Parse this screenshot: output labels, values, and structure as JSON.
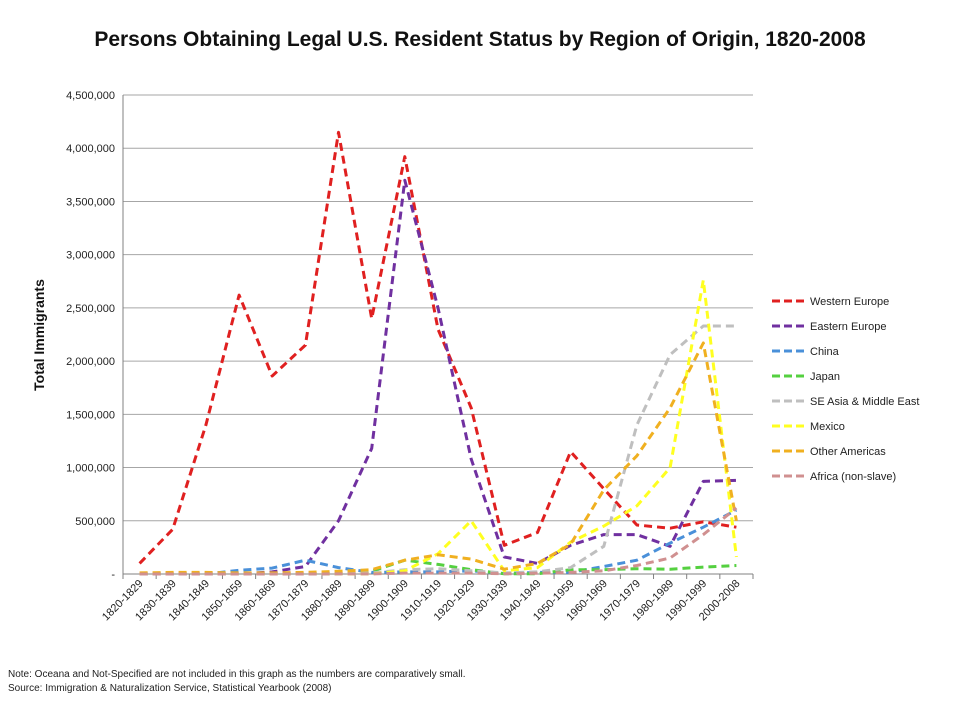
{
  "chart_data": {
    "type": "line",
    "title": "Persons Obtaining Legal U.S. Resident Status by Region of Origin, 1820-2008",
    "ylabel": "Total Immigrants",
    "xlabel": "",
    "ylim": [
      0,
      4500000
    ],
    "yticks": [
      0,
      500000,
      1000000,
      1500000,
      2000000,
      2500000,
      3000000,
      3500000,
      4000000,
      4500000
    ],
    "ytick_labels": [
      "-",
      "500,000",
      "1,000,000",
      "1,500,000",
      "2,000,000",
      "2,500,000",
      "3,000,000",
      "3,500,000",
      "4,000,000",
      "4,500,000"
    ],
    "grid": "horizontal",
    "legend_position": "right",
    "line_style": "dashed",
    "categories": [
      "1820-1829",
      "1830-1839",
      "1840-1849",
      "1850-1859",
      "1860-1869",
      "1870-1879",
      "1880-1889",
      "1890-1899",
      "1900-1909",
      "1910-1919",
      "1920-1929",
      "1930-1939",
      "1940-1949",
      "1950-1959",
      "1960-1969",
      "1970-1979",
      "1980-1989",
      "1990-1999",
      "2000-2008"
    ],
    "series": [
      {
        "name": "Western Europe",
        "color": "#e02020",
        "values": [
          100000,
          420000,
          1400000,
          2620000,
          1860000,
          2150000,
          4150000,
          2400000,
          3920000,
          2300000,
          1560000,
          270000,
          390000,
          1150000,
          800000,
          460000,
          430000,
          490000,
          440000
        ]
      },
      {
        "name": "Eastern Europe",
        "color": "#7030a0",
        "values": [
          0,
          0,
          0,
          0,
          20000,
          70000,
          500000,
          1180000,
          3700000,
          2500000,
          1080000,
          160000,
          100000,
          270000,
          370000,
          370000,
          260000,
          870000,
          880000
        ]
      },
      {
        "name": "China",
        "color": "#4a90d9",
        "values": [
          0,
          0,
          0,
          35000,
          55000,
          130000,
          60000,
          15000,
          20000,
          20000,
          30000,
          5000,
          15000,
          15000,
          70000,
          130000,
          290000,
          440000,
          600000
        ]
      },
      {
        "name": "Japan",
        "color": "#55d040",
        "values": [
          0,
          0,
          0,
          0,
          0,
          0,
          2000,
          25000,
          130000,
          90000,
          40000,
          2000,
          2000,
          40000,
          40000,
          50000,
          45000,
          65000,
          80000
        ]
      },
      {
        "name": "SE Asia & Middle East",
        "color": "#bfbfbf",
        "values": [
          0,
          0,
          0,
          0,
          0,
          0,
          5000,
          10000,
          40000,
          50000,
          30000,
          10000,
          20000,
          60000,
          260000,
          1400000,
          2060000,
          2330000,
          2330000
        ]
      },
      {
        "name": "Mexico",
        "color": "#ffff20",
        "values": [
          5000,
          8000,
          3000,
          3000,
          2000,
          5000,
          2000,
          1000,
          30000,
          190000,
          500000,
          30000,
          60000,
          300000,
          450000,
          640000,
          1000000,
          2760000,
          160000
        ]
      },
      {
        "name": "Other Americas",
        "color": "#f0b020",
        "values": [
          10000,
          15000,
          15000,
          10000,
          10000,
          15000,
          25000,
          40000,
          130000,
          180000,
          140000,
          45000,
          100000,
          280000,
          790000,
          1110000,
          1560000,
          2170000,
          500000
        ]
      },
      {
        "name": "Africa (non-slave)",
        "color": "#d09090",
        "values": [
          0,
          0,
          0,
          0,
          0,
          0,
          1000,
          1000,
          8000,
          8000,
          8000,
          2000,
          7000,
          15000,
          30000,
          80000,
          150000,
          370000,
          620000
        ]
      }
    ]
  },
  "footnotes": {
    "note": "Note:  Oceana and Not-Specified are not included in this graph as the numbers are comparatively small.",
    "source": "Source:  Immigration & Naturalization Service, Statistical Yearbook (2008)"
  }
}
